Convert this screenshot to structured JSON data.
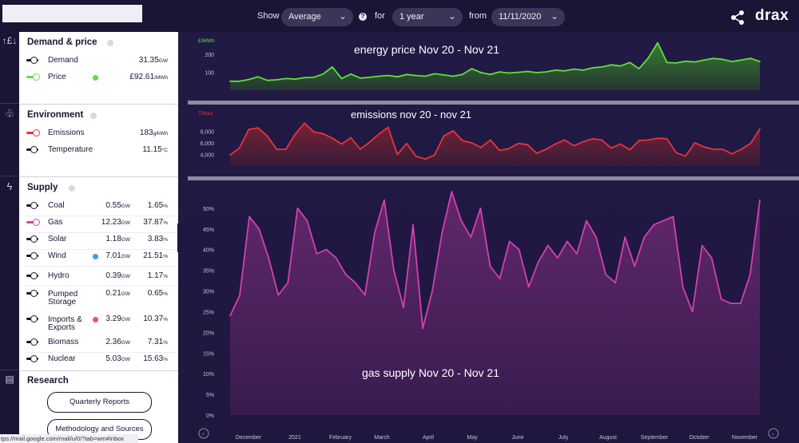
{
  "topbar": {
    "show_label": "Show",
    "show_value": "Average",
    "for_label": "for",
    "for_value": "1 year",
    "from_label": "from",
    "from_value": "11/11/2020",
    "help_icon": "?",
    "logo": "drax"
  },
  "sidebar": {
    "demand": {
      "title": "Demand & price",
      "rows": [
        {
          "name": "Demand",
          "value": "31.35",
          "unit": "GW"
        },
        {
          "name": "Price",
          "value": "£92.61",
          "unit": "/MWh"
        }
      ]
    },
    "environment": {
      "title": "Environment",
      "rows": [
        {
          "name": "Emissions",
          "value": "183",
          "unit": "g/kWh"
        },
        {
          "name": "Temperature",
          "value": "11.15",
          "unit": "°C"
        }
      ]
    },
    "supply": {
      "title": "Supply",
      "rows": [
        {
          "name": "Coal",
          "value": "0.55",
          "unit": "GW",
          "pct": "1.65",
          "pct_unit": "%"
        },
        {
          "name": "Gas",
          "value": "12.23",
          "unit": "GW",
          "pct": "37.87",
          "pct_unit": "%"
        },
        {
          "name": "Solar",
          "value": "1.18",
          "unit": "GW",
          "pct": "3.83",
          "pct_unit": "%"
        },
        {
          "name": "Wind",
          "value": "7.01",
          "unit": "GW",
          "pct": "21.51",
          "pct_unit": "%"
        },
        {
          "name": "Hydro",
          "value": "0.39",
          "unit": "GW",
          "pct": "1.17",
          "pct_unit": "%"
        },
        {
          "name": "Pumped",
          "name2": "Storage",
          "value": "0.21",
          "unit": "GW",
          "pct": "0.65",
          "pct_unit": "%"
        },
        {
          "name": "Imports &",
          "name2": "Exports",
          "value": "3.29",
          "unit": "GW",
          "pct": "10.37",
          "pct_unit": "%"
        },
        {
          "name": "Biomass",
          "value": "2.36",
          "unit": "GW",
          "pct": "7.31",
          "pct_unit": "%"
        },
        {
          "name": "Nuclear",
          "value": "5.03",
          "unit": "GW",
          "pct": "15.63",
          "pct_unit": "%"
        }
      ]
    },
    "research": {
      "title": "Research",
      "quarterly": "Quarterly Reports",
      "methodology": "Methodology and Sources"
    }
  },
  "status_url": "tps://mail.google.com/mail/u/0/?tab=wm#inbox",
  "colors": {
    "price": "#5fe03a",
    "emissions": "#e8333a",
    "gas": "#d43fb3",
    "background": "#1c1538",
    "accent_blue": "#3aa0e0",
    "accent_red": "#e25a5a"
  },
  "chart_data": [
    {
      "type": "area",
      "title": "energy price  Nov 20 - Nov 21",
      "ylabel": "£/MWh",
      "yticks": [
        "100",
        "200"
      ],
      "ylim": [
        0,
        290
      ],
      "values": [
        50,
        50,
        60,
        75,
        55,
        58,
        65,
        62,
        70,
        72,
        90,
        130,
        65,
        90,
        68,
        72,
        78,
        82,
        75,
        88,
        82,
        78,
        92,
        85,
        78,
        88,
        120,
        98,
        88,
        102,
        96,
        100,
        105,
        98,
        102,
        112,
        108,
        118,
        112,
        125,
        130,
        142,
        135,
        155,
        120,
        180,
        265,
        155,
        152,
        162,
        158,
        168,
        178,
        172,
        160,
        168,
        178,
        160
      ]
    },
    {
      "type": "area",
      "title": "emissions nov 20 - nov 21",
      "ylabel": "T/hour",
      "yticks": [
        "4,000",
        "6,000",
        "8,000"
      ],
      "ylim": [
        2000,
        10000
      ],
      "values": [
        3900,
        5100,
        8300,
        8600,
        7200,
        4900,
        4900,
        7500,
        9400,
        7900,
        7600,
        6800,
        5800,
        6900,
        4900,
        6100,
        7500,
        8700,
        4000,
        5900,
        3700,
        3200,
        3900,
        7200,
        8100,
        6400,
        6000,
        5200,
        6500,
        4700,
        5000,
        5900,
        5700,
        4200,
        4900,
        5800,
        6500,
        5500,
        6200,
        6700,
        6500,
        5100,
        5800,
        4800,
        6400,
        6500,
        6800,
        6700,
        4300,
        3700,
        6000,
        5300,
        4900,
        4900,
        4100,
        4900,
        5900,
        8400
      ]
    },
    {
      "type": "area",
      "title": "gas supply Nov 20 - Nov 21",
      "ylabel": "",
      "yticks": [
        "0%",
        "5%",
        "10%",
        "15%",
        "20%",
        "25%",
        "30%",
        "35%",
        "40%",
        "45%",
        "50%"
      ],
      "ylim": [
        0,
        55
      ],
      "x_labels": [
        "December",
        "2021",
        "February",
        "March",
        "April",
        "May",
        "June",
        "July",
        "August",
        "September",
        "October",
        "November"
      ],
      "values": [
        24,
        29,
        48,
        45,
        38,
        29,
        32,
        50,
        47,
        39,
        40,
        38,
        34,
        32,
        29,
        44,
        52,
        35,
        26,
        46,
        21,
        30,
        44,
        54,
        47,
        43,
        50,
        36,
        33,
        42,
        40,
        31,
        37,
        41,
        38,
        42,
        39,
        47,
        43,
        34,
        32,
        43,
        36,
        43,
        46,
        47,
        48,
        31,
        25,
        41,
        38,
        28,
        27,
        27,
        34,
        52
      ]
    }
  ]
}
